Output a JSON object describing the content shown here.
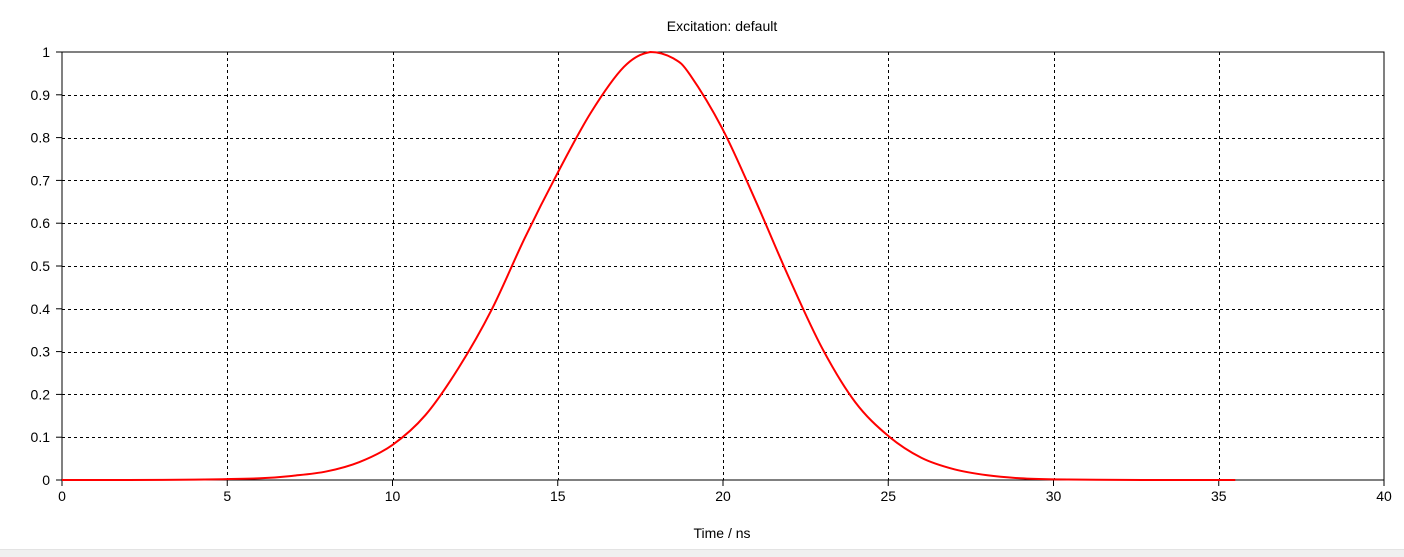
{
  "chart_data": {
    "type": "line",
    "title": "Excitation: default",
    "xlabel": "Time / ns",
    "ylabel": "",
    "xlim": [
      0,
      40
    ],
    "ylim": [
      0,
      1
    ],
    "x_ticks": [
      0,
      5,
      10,
      15,
      20,
      25,
      30,
      35,
      40
    ],
    "y_ticks": [
      0,
      0.1,
      0.2,
      0.3,
      0.4,
      0.5,
      0.6,
      0.7,
      0.8,
      0.9,
      1
    ],
    "grid": true,
    "series": [
      {
        "color": "#ff0000",
        "x": [
          0,
          2,
          4,
          6,
          7,
          8,
          9,
          10,
          11,
          12,
          13,
          14,
          15,
          16,
          17,
          17.8,
          18.5,
          19,
          20,
          21,
          22,
          23,
          24,
          25,
          26,
          27,
          28,
          29,
          30,
          32,
          34,
          35.5
        ],
        "y": [
          0,
          0,
          0.001,
          0.004,
          0.01,
          0.02,
          0.042,
          0.082,
          0.152,
          0.262,
          0.398,
          0.565,
          0.718,
          0.858,
          0.965,
          1.0,
          0.985,
          0.947,
          0.818,
          0.65,
          0.472,
          0.308,
          0.182,
          0.103,
          0.052,
          0.025,
          0.011,
          0.004,
          0.0015,
          0.0003,
          0,
          0
        ]
      }
    ]
  }
}
